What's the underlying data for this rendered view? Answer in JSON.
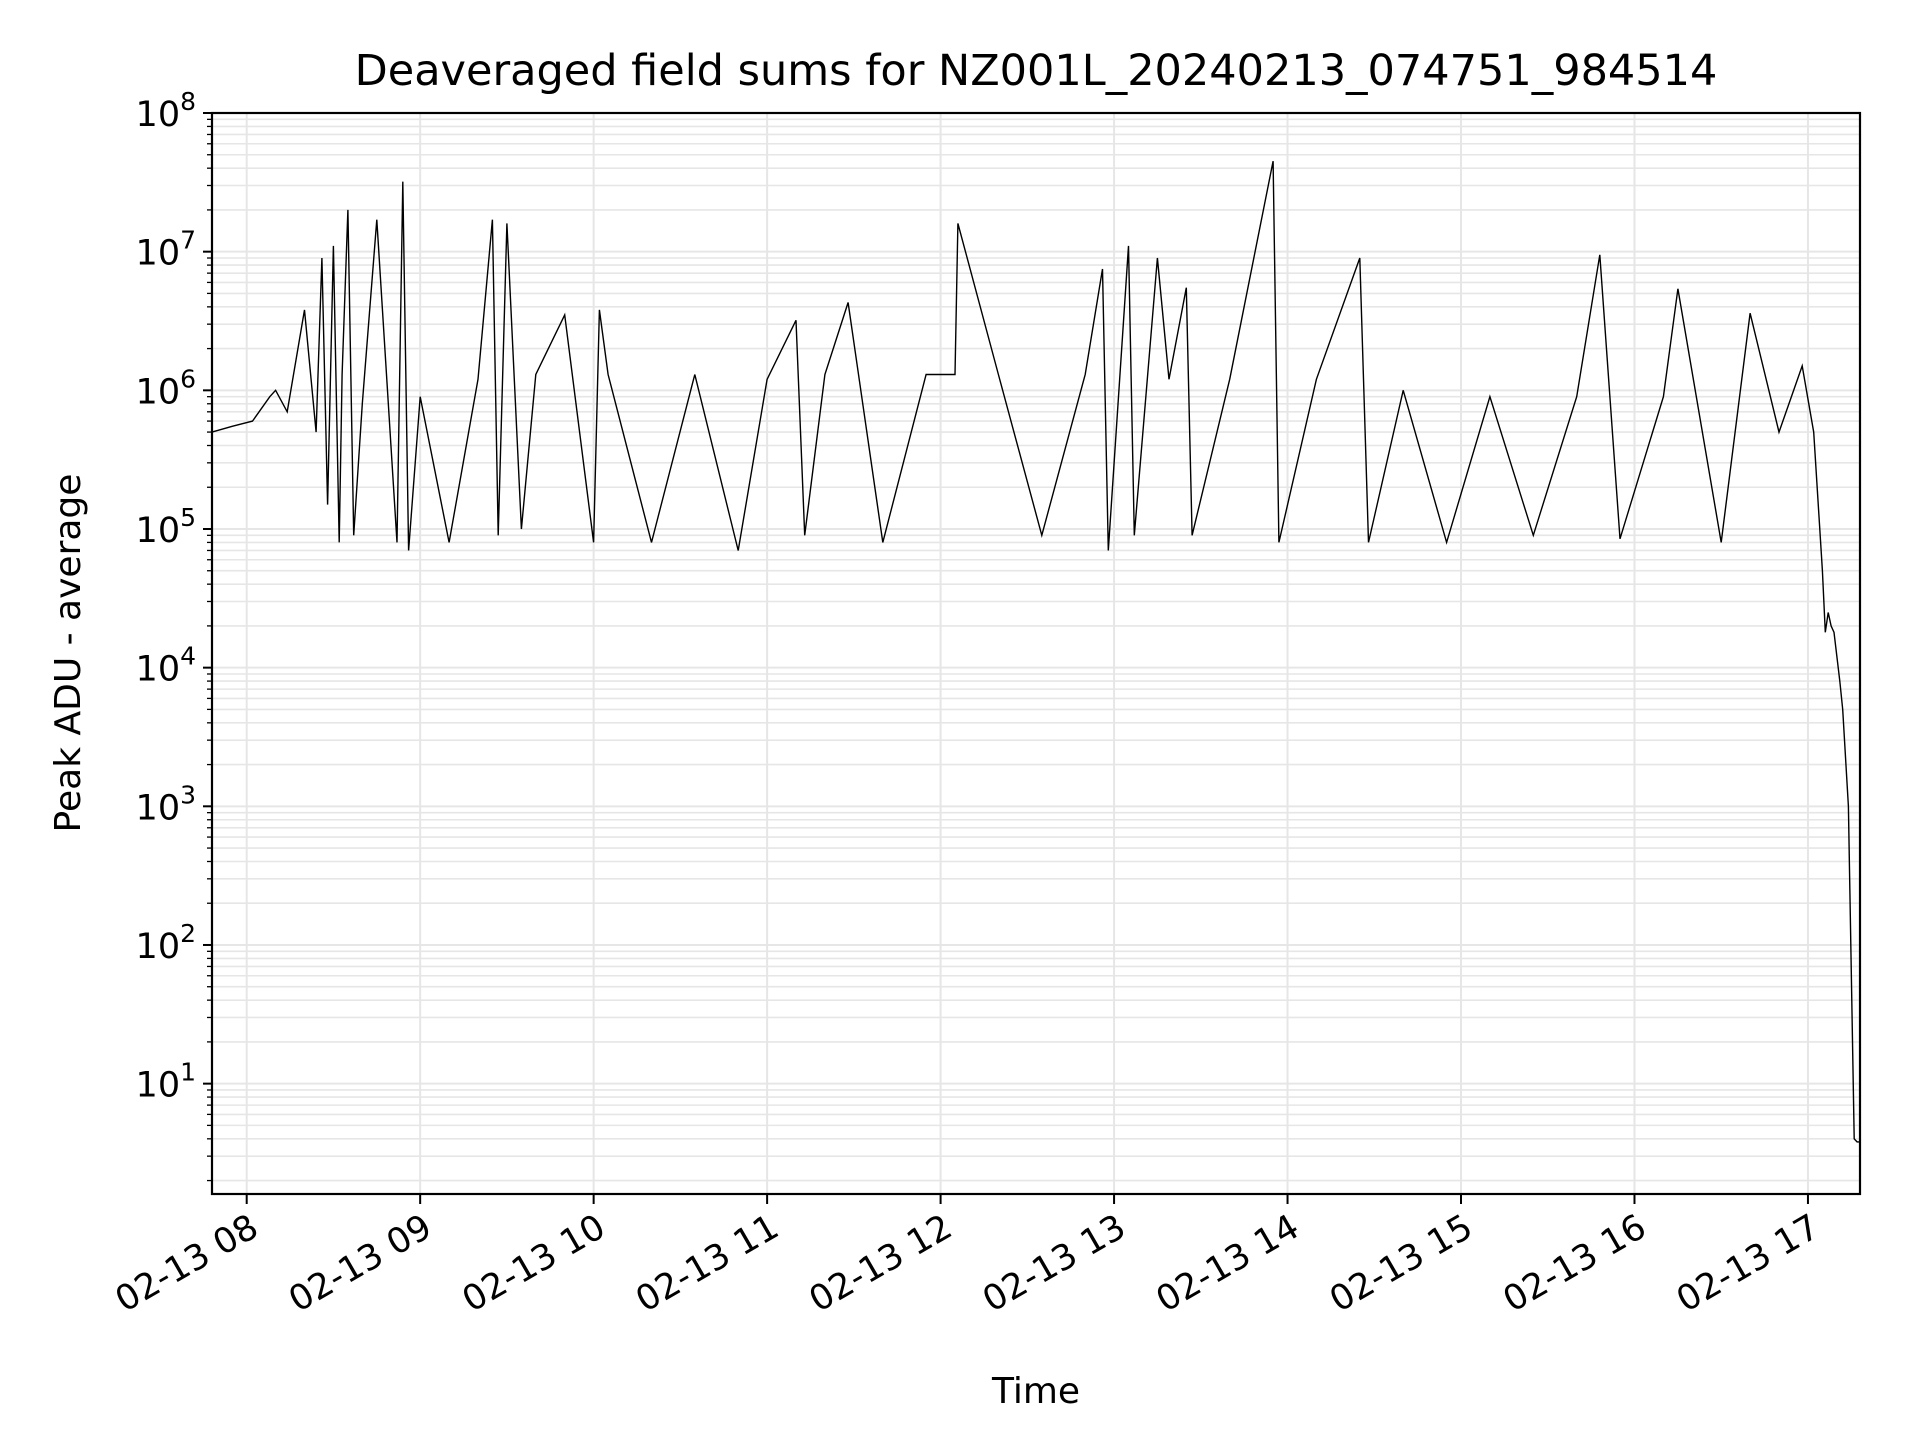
{
  "chart_data": {
    "type": "line",
    "title": "Deaveraged field sums for NZ001L_20240213_074751_984514",
    "xlabel": "Time",
    "ylabel": "Peak ADU - average",
    "yscale": "log",
    "ylim": [
      1.6,
      100000000
    ],
    "xlim": [
      "2024-02-13 07:48",
      "2024-02-13 17:18"
    ],
    "grid": true,
    "line_color": "#000000",
    "grid_color": "#e6e6e6",
    "x_ticks": [
      {
        "label": "02-13 08",
        "t": "2024-02-13 08:00"
      },
      {
        "label": "02-13 09",
        "t": "2024-02-13 09:00"
      },
      {
        "label": "02-13 10",
        "t": "2024-02-13 10:00"
      },
      {
        "label": "02-13 11",
        "t": "2024-02-13 11:00"
      },
      {
        "label": "02-13 12",
        "t": "2024-02-13 12:00"
      },
      {
        "label": "02-13 13",
        "t": "2024-02-13 13:00"
      },
      {
        "label": "02-13 14",
        "t": "2024-02-13 14:00"
      },
      {
        "label": "02-13 15",
        "t": "2024-02-13 15:00"
      },
      {
        "label": "02-13 16",
        "t": "2024-02-13 16:00"
      },
      {
        "label": "02-13 17",
        "t": "2024-02-13 17:00"
      }
    ],
    "y_ticks": [
      {
        "base": "10",
        "exp": "1",
        "value": 10
      },
      {
        "base": "10",
        "exp": "2",
        "value": 100
      },
      {
        "base": "10",
        "exp": "3",
        "value": 1000
      },
      {
        "base": "10",
        "exp": "4",
        "value": 10000
      },
      {
        "base": "10",
        "exp": "5",
        "value": 100000
      },
      {
        "base": "10",
        "exp": "6",
        "value": 1000000
      },
      {
        "base": "10",
        "exp": "7",
        "value": 10000000
      },
      {
        "base": "10",
        "exp": "8",
        "value": 100000000
      }
    ],
    "series": [
      {
        "x": [
          "2024-02-13 07:48",
          "2024-02-13 07:55",
          "2024-02-13 08:02",
          "2024-02-13 08:08",
          "2024-02-13 08:10",
          "2024-02-13 08:14",
          "2024-02-13 08:20",
          "2024-02-13 08:24",
          "2024-02-13 08:26",
          "2024-02-13 08:28",
          "2024-02-13 08:30",
          "2024-02-13 08:32",
          "2024-02-13 08:33",
          "2024-02-13 08:35",
          "2024-02-13 08:37",
          "2024-02-13 08:40",
          "2024-02-13 08:45",
          "2024-02-13 08:52",
          "2024-02-13 08:54",
          "2024-02-13 08:56",
          "2024-02-13 09:00",
          "2024-02-13 09:10",
          "2024-02-13 09:20",
          "2024-02-13 09:25",
          "2024-02-13 09:27",
          "2024-02-13 09:30",
          "2024-02-13 09:35",
          "2024-02-13 09:40",
          "2024-02-13 09:50",
          "2024-02-13 10:00",
          "2024-02-13 10:02",
          "2024-02-13 10:05",
          "2024-02-13 10:20",
          "2024-02-13 10:35",
          "2024-02-13 10:50",
          "2024-02-13 11:00",
          "2024-02-13 11:10",
          "2024-02-13 11:13",
          "2024-02-13 11:20",
          "2024-02-13 11:28",
          "2024-02-13 11:40",
          "2024-02-13 11:55",
          "2024-02-13 12:05",
          "2024-02-13 12:06",
          "2024-02-13 12:20",
          "2024-02-13 12:35",
          "2024-02-13 12:50",
          "2024-02-13 12:56",
          "2024-02-13 12:58",
          "2024-02-13 13:05",
          "2024-02-13 13:07",
          "2024-02-13 13:15",
          "2024-02-13 13:19",
          "2024-02-13 13:25",
          "2024-02-13 13:27",
          "2024-02-13 13:40",
          "2024-02-13 13:55",
          "2024-02-13 13:57",
          "2024-02-13 14:10",
          "2024-02-13 14:25",
          "2024-02-13 14:28",
          "2024-02-13 14:40",
          "2024-02-13 14:55",
          "2024-02-13 15:10",
          "2024-02-13 15:25",
          "2024-02-13 15:40",
          "2024-02-13 15:48",
          "2024-02-13 15:55",
          "2024-02-13 16:10",
          "2024-02-13 16:15",
          "2024-02-13 16:30",
          "2024-02-13 16:40",
          "2024-02-13 16:50",
          "2024-02-13 16:58",
          "2024-02-13 17:02",
          "2024-02-13 17:05",
          "2024-02-13 17:06",
          "2024-02-13 17:07",
          "2024-02-13 17:08",
          "2024-02-13 17:09",
          "2024-02-13 17:11",
          "2024-02-13 17:12",
          "2024-02-13 17:14",
          "2024-02-13 17:16",
          "2024-02-13 17:17",
          "2024-02-13 17:18"
        ],
        "y": [
          500000,
          550000,
          600000,
          900000,
          1000000,
          700000,
          3800000,
          500000,
          9000000,
          150000,
          11000000,
          80000,
          1300000,
          20000000,
          90000,
          800000,
          17000000,
          80000,
          32000000,
          70000,
          900000,
          80000,
          1200000,
          17000000,
          90000,
          16000000,
          100000,
          1300000,
          3500000,
          80000,
          3800000,
          1300000,
          80000,
          1300000,
          70000,
          1200000,
          3200000,
          90000,
          1300000,
          4300000,
          80000,
          1300000,
          1300000,
          16000000,
          1300000,
          90000,
          1300000,
          7500000,
          70000,
          11000000,
          90000,
          9000000,
          1200000,
          5500000,
          90000,
          1200000,
          45000000,
          80000,
          1200000,
          9000000,
          80000,
          1000000,
          80000,
          900000,
          90000,
          900000,
          9500000,
          85000,
          900000,
          5400000,
          80000,
          3600000,
          500000,
          1500000,
          500000,
          50000,
          18000,
          25000,
          20000,
          18000,
          8000,
          5000,
          1000,
          4,
          3.8,
          3.8
        ]
      }
    ]
  }
}
